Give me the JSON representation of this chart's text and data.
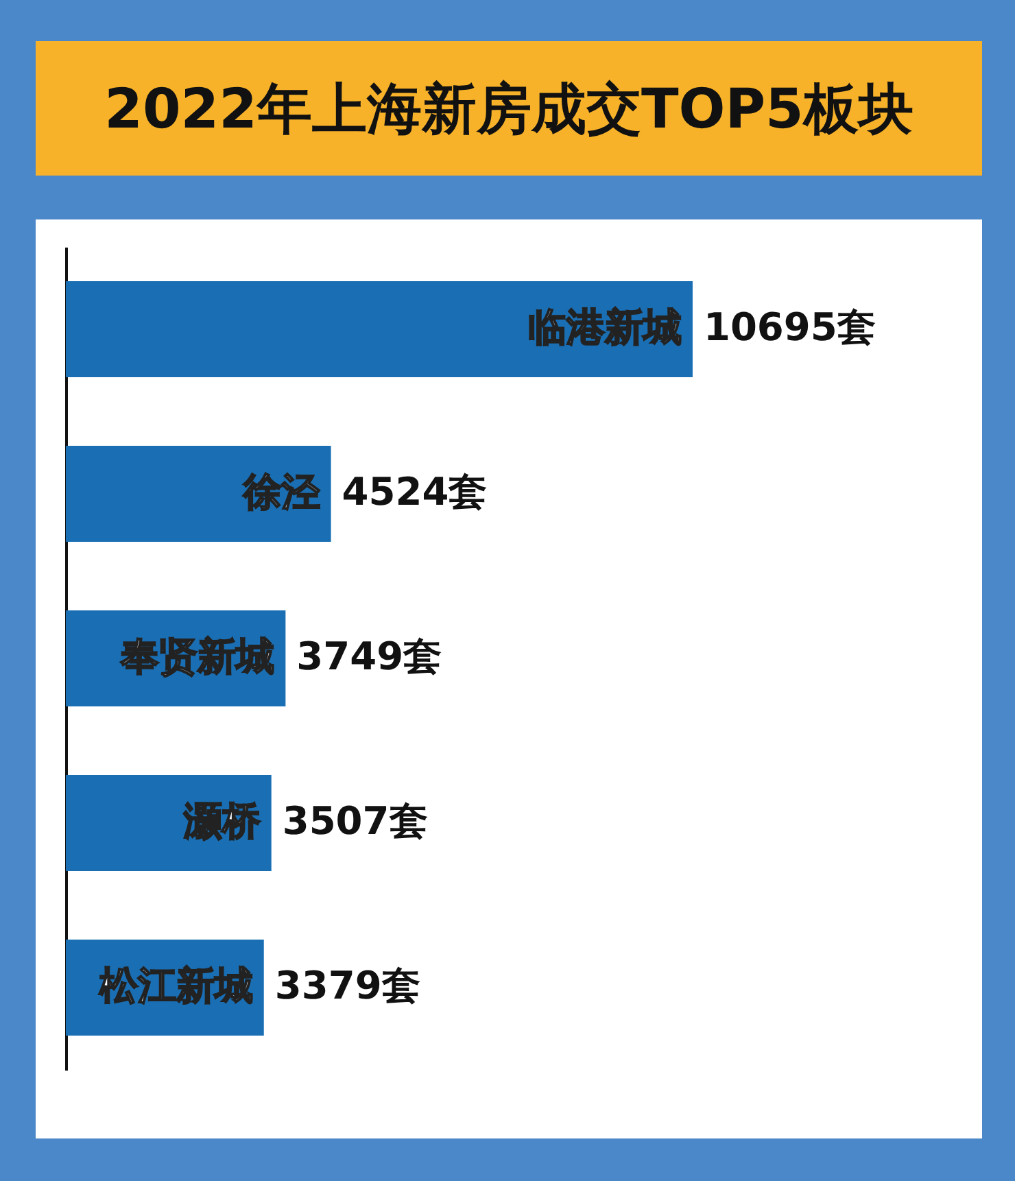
{
  "chart_data": {
    "type": "bar",
    "orientation": "horizontal",
    "title": "2022年上海新房成交TOP5板块",
    "categories": [
      "临港新城",
      "徐泾",
      "奉贤新城",
      "灏桥",
      "松江新城"
    ],
    "values": [
      10695,
      4524,
      3749,
      3507,
      3379
    ],
    "color": "#1a6fb4",
    "value_labels": [
      "10695套",
      "4524套",
      "3749套",
      "3507套",
      "3379套"
    ]
  }
}
